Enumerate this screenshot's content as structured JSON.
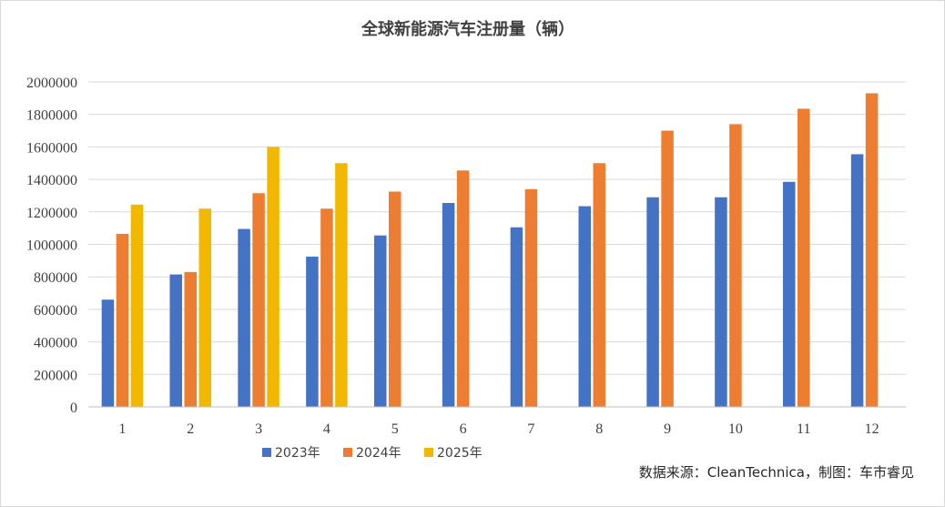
{
  "chart_data": {
    "type": "bar",
    "title": "全球新能源汽车注册量（辆）",
    "categories": [
      "1",
      "2",
      "3",
      "4",
      "5",
      "6",
      "7",
      "8",
      "9",
      "10",
      "11",
      "12"
    ],
    "series": [
      {
        "name": "2023年",
        "color": "#4472c4",
        "values": [
          660000,
          815000,
          1095000,
          925000,
          1055000,
          1255000,
          1105000,
          1235000,
          1290000,
          1290000,
          1385000,
          1555000
        ]
      },
      {
        "name": "2024年",
        "color": "#ed7d31",
        "values": [
          1065000,
          830000,
          1315000,
          1220000,
          1325000,
          1455000,
          1340000,
          1500000,
          1700000,
          1740000,
          1835000,
          1930000
        ]
      },
      {
        "name": "2025年",
        "color": "#f2b800",
        "values": [
          1245000,
          1220000,
          1600000,
          1500000,
          null,
          null,
          null,
          null,
          null,
          null,
          null,
          null
        ]
      }
    ],
    "ylim": [
      0,
      2000000
    ],
    "yticks": [
      "0",
      "200000",
      "400000",
      "600000",
      "800000",
      "1000000",
      "1200000",
      "1400000",
      "1600000",
      "1800000",
      "2000000"
    ],
    "grid": true,
    "legend": "bottom"
  },
  "source_note": "数据来源：CleanTechnica，制图：车市睿见"
}
